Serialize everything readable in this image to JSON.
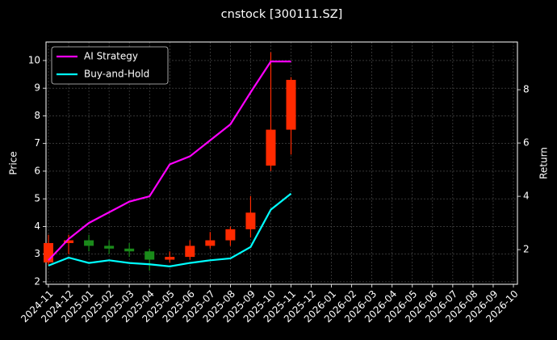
{
  "chart_data": {
    "type": "candlestick",
    "title": "cnstock [300111.SZ]",
    "ylabel": "Price",
    "y2label": "Return",
    "x": [
      "2024-11",
      "2024-12",
      "2025-01",
      "2025-02",
      "2025-03",
      "2025-04",
      "2025-05",
      "2025-06",
      "2025-07",
      "2025-08",
      "2025-09",
      "2025-10",
      "2025-11",
      "2025-12",
      "2026-01",
      "2026-02",
      "2026-03",
      "2026-04",
      "2026-05",
      "2026-06",
      "2026-07",
      "2026-08",
      "2026-09",
      "2026-10"
    ],
    "open": [
      2.7,
      3.4,
      3.5,
      3.3,
      3.2,
      3.1,
      2.8,
      2.9,
      3.3,
      3.5,
      3.9,
      6.2,
      7.5,
      null,
      null,
      null,
      null,
      null,
      null,
      null,
      null,
      null,
      null,
      null
    ],
    "high": [
      3.7,
      3.7,
      3.7,
      3.5,
      3.4,
      3.2,
      3.1,
      3.5,
      3.8,
      4.0,
      5.1,
      10.3,
      9.4,
      null,
      null,
      null,
      null,
      null,
      null,
      null,
      null,
      null,
      null,
      null
    ],
    "low": [
      2.6,
      3.0,
      3.1,
      3.0,
      2.9,
      2.4,
      2.7,
      2.8,
      3.2,
      3.3,
      3.6,
      6.0,
      6.6,
      null,
      null,
      null,
      null,
      null,
      null,
      null,
      null,
      null,
      null,
      null
    ],
    "close": [
      3.4,
      3.5,
      3.3,
      3.2,
      3.1,
      2.8,
      2.9,
      3.3,
      3.5,
      3.9,
      4.5,
      7.5,
      9.3,
      null,
      null,
      null,
      null,
      null,
      null,
      null,
      null,
      null,
      null,
      null
    ],
    "up_color": "#ff2a00",
    "down_color": "#1a8a1a",
    "series": [
      {
        "name": "AI Strategy",
        "color": "#ff00ff",
        "axis": "y2",
        "values": [
          1.6,
          2.4,
          3.0,
          3.4,
          3.8,
          4.0,
          5.2,
          5.5,
          6.1,
          6.7,
          7.9,
          9.06,
          9.06,
          null,
          null,
          null,
          null,
          null,
          null,
          null,
          null,
          null,
          null,
          null
        ]
      },
      {
        "name": "Buy-and-Hold",
        "color": "#00ffff",
        "axis": "y2",
        "values": [
          1.4,
          1.7,
          1.5,
          1.6,
          1.5,
          1.45,
          1.37,
          1.5,
          1.6,
          1.67,
          2.1,
          3.5,
          4.1,
          null,
          null,
          null,
          null,
          null,
          null,
          null,
          null,
          null,
          null,
          null
        ]
      }
    ],
    "ylim": [
      1.91,
      10.67
    ],
    "yticks": [
      2,
      3,
      4,
      5,
      6,
      7,
      8,
      9,
      10
    ],
    "y2lim": [
      0.7,
      9.79
    ],
    "y2ticks": [
      2,
      4,
      6,
      8
    ],
    "grid": true,
    "legend": "upper left"
  }
}
